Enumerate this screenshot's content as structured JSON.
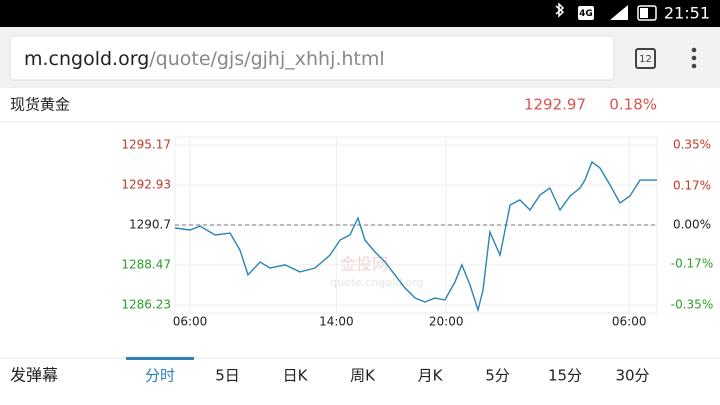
{
  "status_bar": {
    "network": "4G",
    "time": "21:51"
  },
  "url_bar": {
    "domain": "m.cngold.org",
    "path": "/quote/gjs/gjhj_xhhj.html",
    "tab_count": "12"
  },
  "quote": {
    "name": "现货黄金",
    "price": "1292.97",
    "change": "0.18%"
  },
  "watermark": {
    "brand": "金投网",
    "site": "quote.cngold.org"
  },
  "chart_data": {
    "type": "line",
    "x": [
      -0.82,
      0,
      0.55,
      1.37,
      2.19,
      2.73,
      3.17,
      3.83,
      4.37,
      5.19,
      6.01,
      6.83,
      7.65,
      8.2,
      8.74,
      9.18,
      9.56,
      10.11,
      10.66,
      11.2,
      11.75,
      12.3,
      12.84,
      13.39,
      13.93,
      14.48,
      14.86,
      15.3,
      15.74,
      16.01,
      16.39,
      16.94,
      17.49,
      18.03,
      18.58,
      19.13,
      19.67,
      20.22,
      20.77,
      21.31,
      21.58,
      21.97,
      22.4,
      22.95,
      23.5,
      24.04,
      24.59,
      25.52
    ],
    "series": [
      {
        "name": "现货黄金",
        "color": "#2b83b8",
        "values": [
          1290.53,
          1290.42,
          1290.64,
          1290.14,
          1290.25,
          1289.3,
          1287.91,
          1288.63,
          1288.3,
          1288.47,
          1288.08,
          1288.3,
          1289.02,
          1289.86,
          1290.14,
          1291.09,
          1289.86,
          1289.19,
          1288.63,
          1287.91,
          1287.18,
          1286.62,
          1286.4,
          1286.62,
          1286.51,
          1287.52,
          1288.47,
          1287.35,
          1285.95,
          1287.07,
          1290.31,
          1289.02,
          1291.82,
          1292.1,
          1291.54,
          1292.38,
          1292.77,
          1291.54,
          1292.32,
          1292.77,
          1293.21,
          1294.22,
          1293.89,
          1292.94,
          1291.93,
          1292.32,
          1293.21,
          1293.21
        ]
      }
    ],
    "xlim": [
      -0.82,
      25.52
    ],
    "xticks": [
      {
        "value": 0,
        "label": "06:00"
      },
      {
        "value": 8,
        "label": "14:00"
      },
      {
        "value": 14,
        "label": "20:00"
      },
      {
        "value": 24,
        "label": "06:00"
      }
    ],
    "ylim": [
      1286.23,
      1295.17
    ],
    "yticks": [
      1295.17,
      1292.93,
      1290.7,
      1288.47,
      1286.23
    ],
    "ytick_colors": [
      "#c0392b",
      "#c0392b",
      "#222222",
      "#2a9d2a",
      "#2a9d2a"
    ],
    "y2lim": [
      -0.35,
      0.35
    ],
    "y2ticks": [
      {
        "value": 0.35,
        "label": "0.35%"
      },
      {
        "value": 0.17,
        "label": "0.17%"
      },
      {
        "value": 0,
        "label": "0.00%"
      },
      {
        "value": -0.17,
        "label": "-0.17%"
      },
      {
        "value": -0.35,
        "label": "-0.35%"
      }
    ],
    "prev_close": 1290.7,
    "grid": true
  },
  "tabs": {
    "danmaku": "发弹幕",
    "items": [
      "分时",
      "5日",
      "日K",
      "周K",
      "月K",
      "5分",
      "15分",
      "30分"
    ],
    "active": 0
  }
}
